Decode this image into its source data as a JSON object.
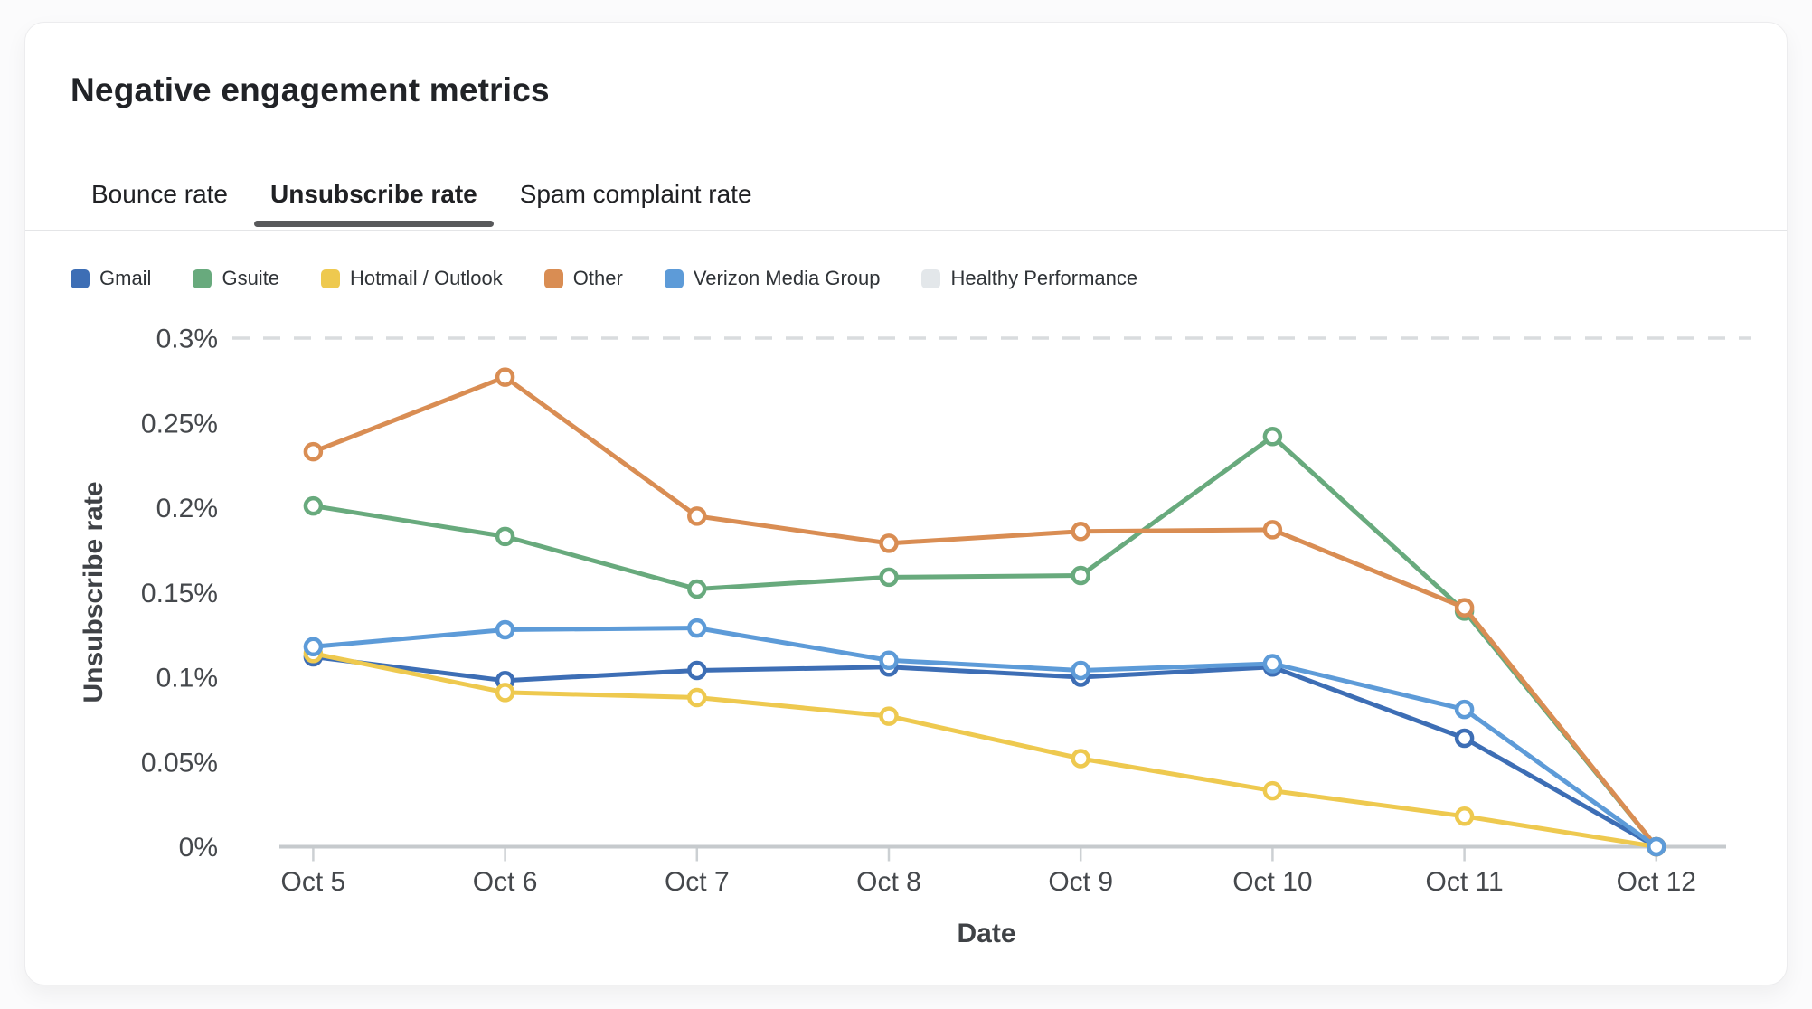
{
  "header": {
    "title": "Negative engagement metrics"
  },
  "tabs": [
    {
      "label": "Bounce rate",
      "active": false
    },
    {
      "label": "Unsubscribe rate",
      "active": true
    },
    {
      "label": "Spam complaint rate",
      "active": false
    }
  ],
  "legend": {
    "items": [
      {
        "label": "Gmail",
        "color": "#3d6eb5"
      },
      {
        "label": "Gsuite",
        "color": "#68aa7d"
      },
      {
        "label": "Hotmail / Outlook",
        "color": "#eec94f"
      },
      {
        "label": "Other",
        "color": "#d98d53"
      },
      {
        "label": "Verizon Media Group",
        "color": "#5d9bd8"
      },
      {
        "label": "Healthy Performance",
        "color": "#e3e7ea"
      }
    ]
  },
  "chart_data": {
    "type": "line",
    "title": "Negative engagement metrics — Unsubscribe rate",
    "xlabel": "Date",
    "ylabel": "Unsubscribe rate",
    "categories": [
      "Oct 5",
      "Oct 6",
      "Oct 7",
      "Oct 8",
      "Oct 9",
      "Oct 10",
      "Oct 11",
      "Oct 12"
    ],
    "ylim": [
      0,
      0.3
    ],
    "unit": "percent",
    "ytick_values": [
      0,
      0.05,
      0.1,
      0.15,
      0.2,
      0.25,
      0.3
    ],
    "ytick_labels": [
      "0%",
      "0.05%",
      "0.1%",
      "0.15%",
      "0.2%",
      "0.25%",
      "0.3%"
    ],
    "grid": "off",
    "legend_position": "top",
    "threshold": {
      "name": "Healthy Performance",
      "value": 0.3,
      "style": "dashed"
    },
    "series": [
      {
        "name": "Healthy Performance",
        "color": "#d9dcde",
        "style": "dashed",
        "markers": false,
        "values": [
          0.3,
          0.3,
          0.3,
          0.3,
          0.3,
          0.3,
          0.3,
          0.3
        ]
      },
      {
        "name": "Gsuite",
        "color": "#68aa7d",
        "style": "solid",
        "markers": true,
        "values": [
          0.201,
          0.183,
          0.152,
          0.159,
          0.16,
          0.242,
          0.139,
          0
        ]
      },
      {
        "name": "Gmail",
        "color": "#3d6eb5",
        "style": "solid",
        "markers": true,
        "values": [
          0.112,
          0.098,
          0.104,
          0.106,
          0.1,
          0.106,
          0.064,
          0
        ]
      },
      {
        "name": "Hotmail / Outlook",
        "color": "#eec94f",
        "style": "solid",
        "markers": true,
        "values": [
          0.114,
          0.091,
          0.088,
          0.077,
          0.052,
          0.033,
          0.018,
          0
        ]
      },
      {
        "name": "Other",
        "color": "#d98d53",
        "style": "solid",
        "markers": true,
        "values": [
          0.233,
          0.277,
          0.195,
          0.179,
          0.186,
          0.187,
          0.141,
          0
        ]
      },
      {
        "name": "Verizon Media Group",
        "color": "#5d9bd8",
        "style": "solid",
        "markers": true,
        "values": [
          0.118,
          0.128,
          0.129,
          0.11,
          0.104,
          0.108,
          0.081,
          0
        ]
      }
    ]
  }
}
